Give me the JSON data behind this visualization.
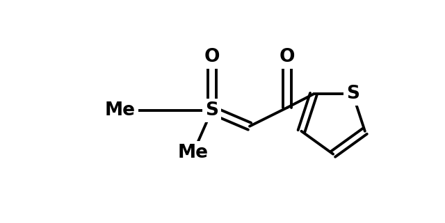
{
  "bg_color": "#ffffff",
  "line_color": "#000000",
  "line_width": 2.8,
  "font_size": 19,
  "font_weight": "bold",
  "figsize": [
    6.4,
    3.21
  ],
  "dpi": 100,
  "xlim": [
    0,
    6.4
  ],
  "ylim": [
    0,
    3.21
  ]
}
